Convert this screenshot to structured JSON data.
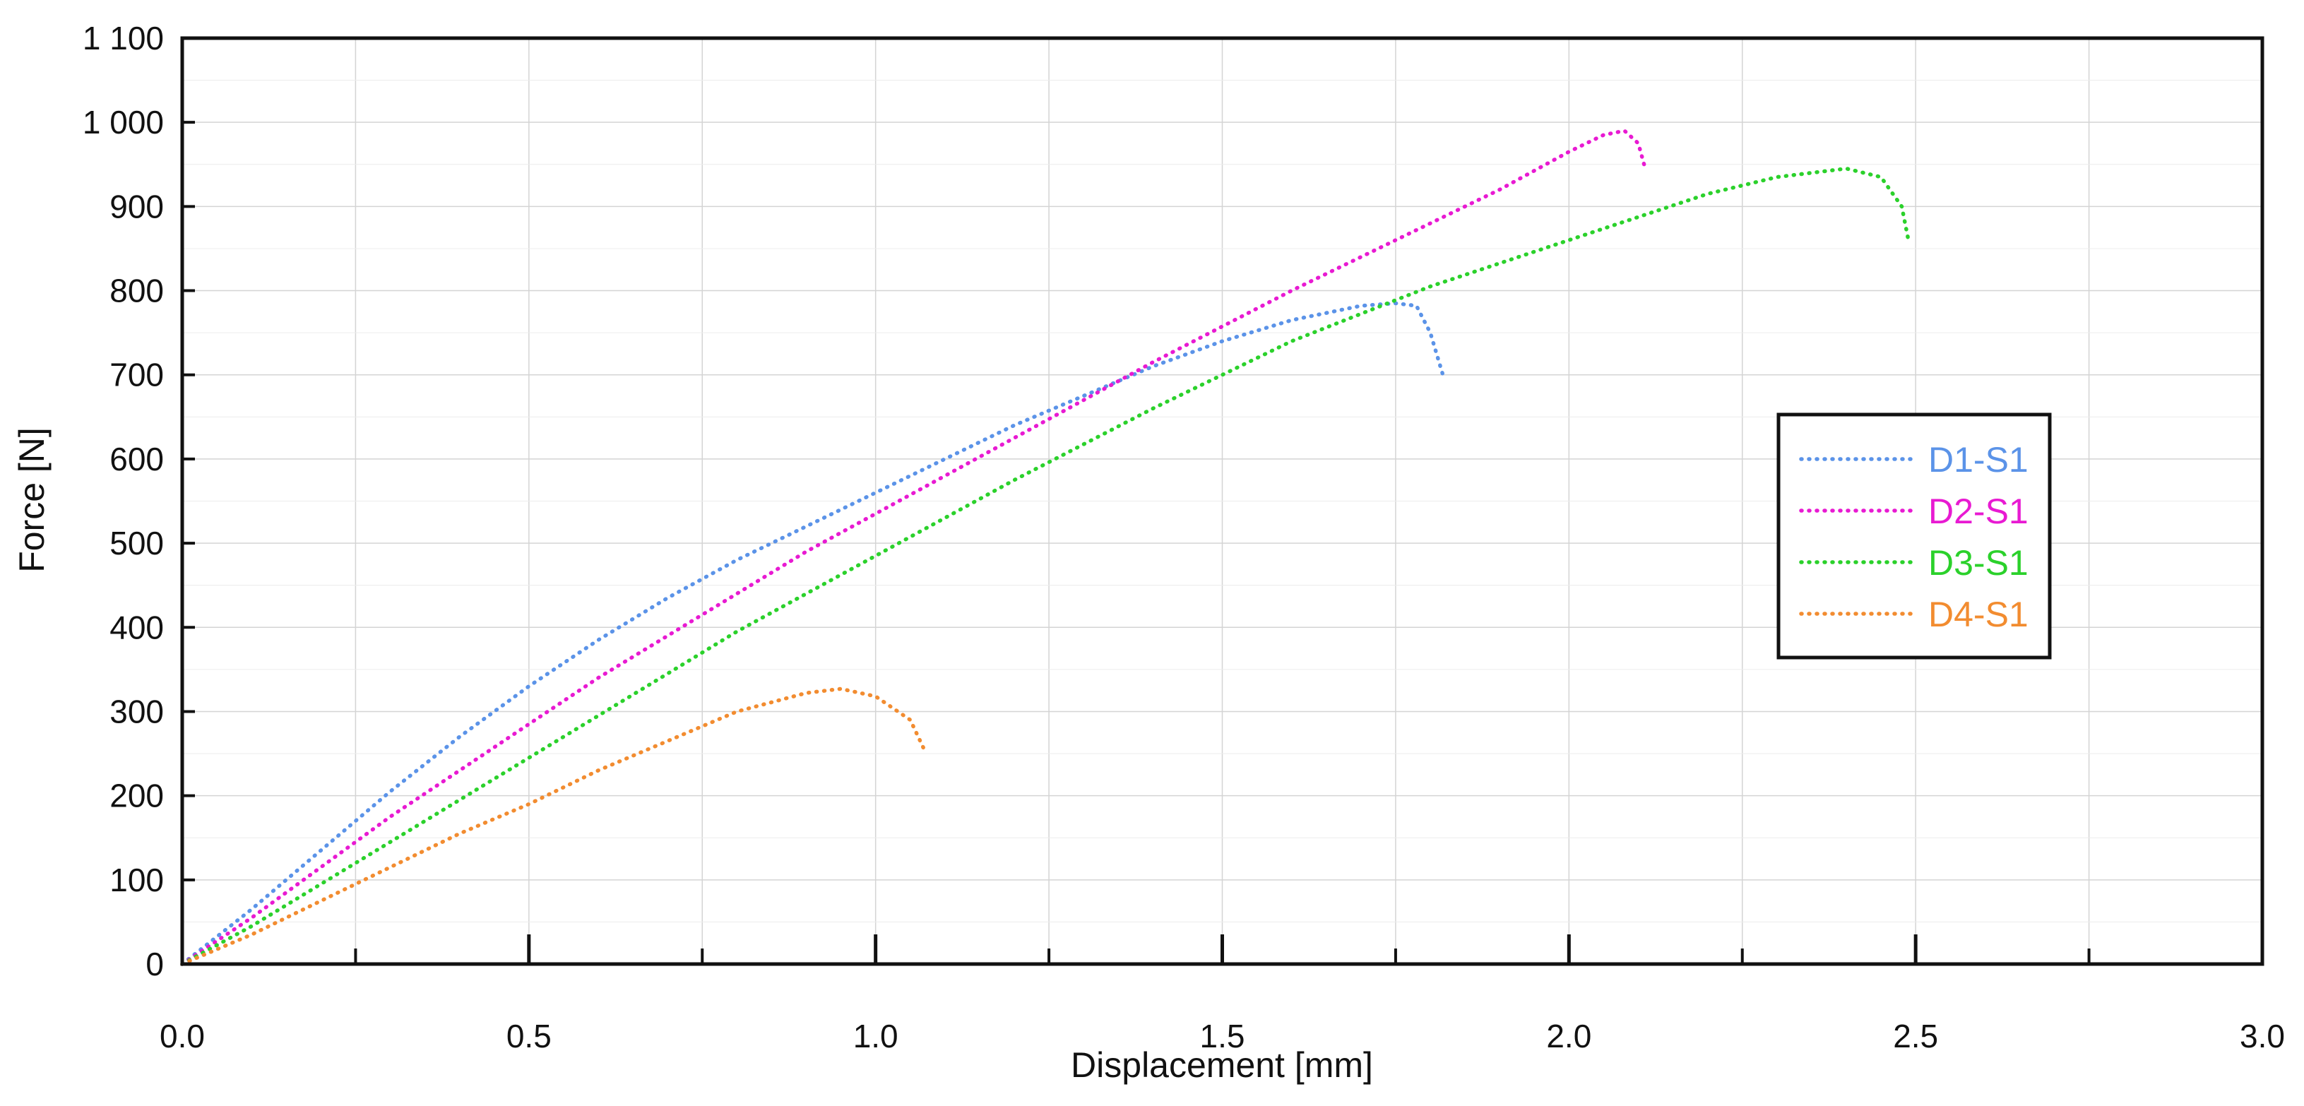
{
  "chart_data": {
    "type": "line",
    "title": "",
    "xlabel": "Displacement [mm]",
    "ylabel": "Force [N]",
    "xlim": [
      0,
      3.0
    ],
    "ylim": [
      0,
      1100
    ],
    "grid": true,
    "legend_position": "right",
    "x_ticks": [
      {
        "value": 0,
        "label": "0.0"
      },
      {
        "value": 0.5,
        "label": "0.5"
      },
      {
        "value": 1.0,
        "label": "1.0"
      },
      {
        "value": 1.5,
        "label": "1.5"
      },
      {
        "value": 2.0,
        "label": "2.0"
      },
      {
        "value": 2.5,
        "label": "2.5"
      },
      {
        "value": 3.0,
        "label": "3.0"
      }
    ],
    "y_ticks": [
      {
        "value": 0,
        "label": "0"
      },
      {
        "value": 100,
        "label": "100"
      },
      {
        "value": 200,
        "label": "200"
      },
      {
        "value": 300,
        "label": "300"
      },
      {
        "value": 400,
        "label": "400"
      },
      {
        "value": 500,
        "label": "500"
      },
      {
        "value": 600,
        "label": "600"
      },
      {
        "value": 700,
        "label": "700"
      },
      {
        "value": 800,
        "label": "800"
      },
      {
        "value": 900,
        "label": "900"
      },
      {
        "value": 1000,
        "label": "1 000"
      },
      {
        "value": 1100,
        "label": "1 100"
      }
    ],
    "series": [
      {
        "name": "D1-S1",
        "color": "#5b93e8",
        "x": [
          0,
          0.1,
          0.2,
          0.3,
          0.4,
          0.5,
          0.6,
          0.7,
          0.8,
          0.9,
          1.0,
          1.1,
          1.2,
          1.3,
          1.4,
          1.5,
          1.6,
          1.7,
          1.75,
          1.78,
          1.8,
          1.82
        ],
        "y": [
          0,
          65,
          135,
          205,
          270,
          330,
          385,
          435,
          480,
          520,
          560,
          600,
          640,
          675,
          710,
          740,
          765,
          782,
          785,
          782,
          750,
          695
        ]
      },
      {
        "name": "D2-S1",
        "color": "#e81ad2",
        "x": [
          0,
          0.1,
          0.2,
          0.3,
          0.4,
          0.5,
          0.6,
          0.7,
          0.8,
          0.9,
          1.0,
          1.2,
          1.4,
          1.6,
          1.8,
          1.9,
          2.0,
          2.05,
          2.08,
          2.1,
          2.11
        ],
        "y": [
          0,
          55,
          115,
          175,
          230,
          285,
          340,
          390,
          440,
          490,
          535,
          625,
          715,
          800,
          880,
          920,
          965,
          985,
          990,
          975,
          945
        ]
      },
      {
        "name": "D3-S1",
        "color": "#2bd12b",
        "x": [
          0,
          0.1,
          0.2,
          0.3,
          0.4,
          0.5,
          0.6,
          0.7,
          0.8,
          0.9,
          1.0,
          1.2,
          1.4,
          1.6,
          1.8,
          2.0,
          2.2,
          2.3,
          2.4,
          2.45,
          2.48,
          2.49
        ],
        "y": [
          0,
          45,
          95,
          145,
          195,
          245,
          295,
          345,
          395,
          440,
          485,
          575,
          660,
          740,
          805,
          860,
          915,
          935,
          945,
          935,
          900,
          858
        ]
      },
      {
        "name": "D4-S1",
        "color": "#f28c30",
        "x": [
          0,
          0.1,
          0.2,
          0.3,
          0.4,
          0.5,
          0.6,
          0.7,
          0.8,
          0.9,
          0.95,
          1.0,
          1.05,
          1.07
        ],
        "y": [
          0,
          35,
          75,
          115,
          155,
          190,
          230,
          265,
          300,
          322,
          327,
          318,
          290,
          255
        ]
      }
    ]
  }
}
